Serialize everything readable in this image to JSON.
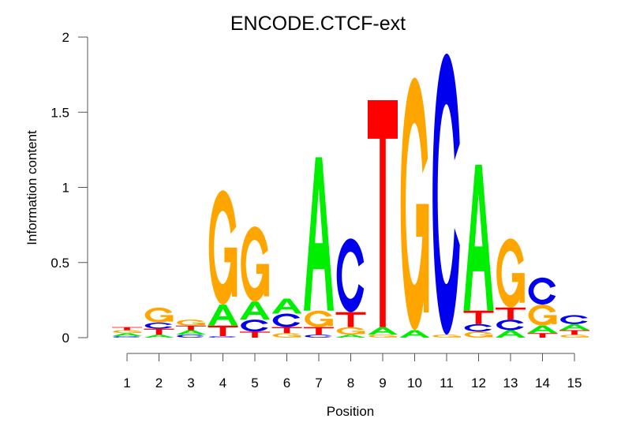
{
  "chart_data": {
    "type": "sequence-logo",
    "title": "ENCODE.CTCF-ext",
    "xlabel": "Position",
    "ylabel": "Information content",
    "ylim": [
      0,
      2
    ],
    "yticks": [
      "0",
      "0.5",
      "1",
      "1.5",
      "2"
    ],
    "ytick_values": [
      0,
      0.5,
      1,
      1.5,
      2
    ],
    "xticks": [
      "1",
      "2",
      "3",
      "4",
      "5",
      "6",
      "7",
      "8",
      "9",
      "10",
      "11",
      "12",
      "13",
      "14",
      "15"
    ],
    "colors": {
      "A": "#00ee00",
      "C": "#0000ee",
      "G": "#ffa500",
      "T": "#ff0000"
    },
    "positions": [
      [
        [
          "C",
          0.01
        ],
        [
          "A",
          0.02
        ],
        [
          "G",
          0.02
        ],
        [
          "T",
          0.02
        ]
      ],
      [
        [
          "A",
          0.02
        ],
        [
          "T",
          0.04
        ],
        [
          "C",
          0.04
        ],
        [
          "G",
          0.1
        ]
      ],
      [
        [
          "C",
          0.02
        ],
        [
          "A",
          0.03
        ],
        [
          "T",
          0.03
        ],
        [
          "G",
          0.04
        ]
      ],
      [
        [
          "C",
          0.01
        ],
        [
          "T",
          0.07
        ],
        [
          "A",
          0.14
        ],
        [
          "G",
          0.76
        ]
      ],
      [
        [
          "T",
          0.04
        ],
        [
          "C",
          0.08
        ],
        [
          "A",
          0.12
        ],
        [
          "G",
          0.5
        ]
      ],
      [
        [
          "G",
          0.03
        ],
        [
          "T",
          0.04
        ],
        [
          "C",
          0.09
        ],
        [
          "A",
          0.1
        ]
      ],
      [
        [
          "C",
          0.02
        ],
        [
          "T",
          0.05
        ],
        [
          "G",
          0.11
        ],
        [
          "A",
          1.02
        ]
      ],
      [
        [
          "A",
          0.02
        ],
        [
          "G",
          0.05
        ],
        [
          "T",
          0.1
        ],
        [
          "C",
          0.49
        ]
      ],
      [
        [
          "G",
          0.02
        ],
        [
          "A",
          0.05
        ],
        [
          "T",
          1.51
        ]
      ],
      [
        [
          "A",
          0.05
        ],
        [
          "G",
          1.68
        ]
      ],
      [
        [
          "G",
          0.02
        ],
        [
          "C",
          1.87
        ]
      ],
      [
        [
          "G",
          0.04
        ],
        [
          "C",
          0.05
        ],
        [
          "T",
          0.09
        ],
        [
          "A",
          0.97
        ]
      ],
      [
        [
          "A",
          0.05
        ],
        [
          "C",
          0.07
        ],
        [
          "T",
          0.08
        ],
        [
          "G",
          0.46
        ]
      ],
      [
        [
          "T",
          0.03
        ],
        [
          "A",
          0.05
        ],
        [
          "G",
          0.14
        ],
        [
          "C",
          0.18
        ]
      ],
      [
        [
          "G",
          0.02
        ],
        [
          "T",
          0.03
        ],
        [
          "A",
          0.04
        ],
        [
          "C",
          0.06
        ]
      ]
    ]
  }
}
